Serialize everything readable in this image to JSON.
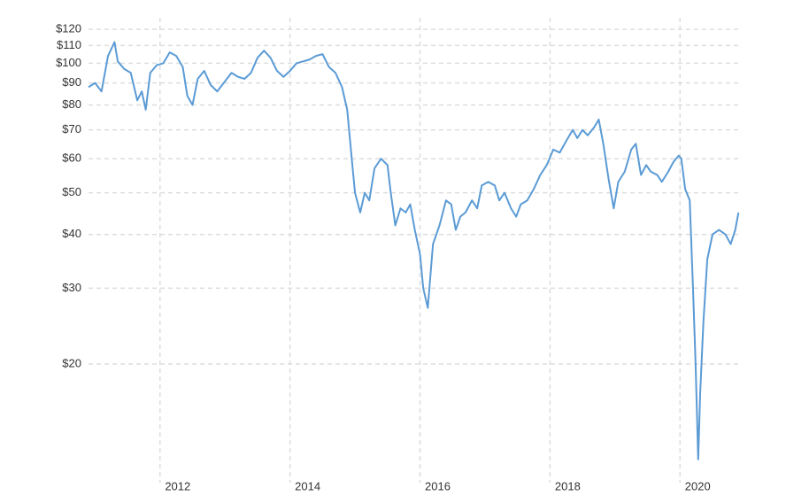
{
  "chart_data": {
    "type": "line",
    "x": [
      2010.9,
      2011.0,
      2011.1,
      2011.2,
      2011.3,
      2011.35,
      2011.45,
      2011.55,
      2011.65,
      2011.72,
      2011.78,
      2011.85,
      2011.95,
      2012.05,
      2012.15,
      2012.25,
      2012.35,
      2012.42,
      2012.5,
      2012.58,
      2012.68,
      2012.78,
      2012.88,
      2012.98,
      2013.1,
      2013.2,
      2013.3,
      2013.4,
      2013.5,
      2013.6,
      2013.7,
      2013.8,
      2013.9,
      2014.0,
      2014.1,
      2014.2,
      2014.3,
      2014.4,
      2014.5,
      2014.6,
      2014.7,
      2014.8,
      2014.88,
      2014.95,
      2015.0,
      2015.08,
      2015.15,
      2015.22,
      2015.3,
      2015.4,
      2015.5,
      2015.55,
      2015.62,
      2015.7,
      2015.78,
      2015.85,
      2015.92,
      2016.0,
      2016.05,
      2016.12,
      2016.2,
      2016.3,
      2016.4,
      2016.48,
      2016.55,
      2016.62,
      2016.7,
      2016.8,
      2016.88,
      2016.95,
      2017.05,
      2017.15,
      2017.22,
      2017.3,
      2017.4,
      2017.48,
      2017.55,
      2017.65,
      2017.75,
      2017.85,
      2017.95,
      2018.05,
      2018.15,
      2018.25,
      2018.35,
      2018.42,
      2018.5,
      2018.58,
      2018.68,
      2018.75,
      2018.82,
      2018.9,
      2018.98,
      2019.05,
      2019.15,
      2019.25,
      2019.32,
      2019.4,
      2019.48,
      2019.55,
      2019.65,
      2019.72,
      2019.82,
      2019.9,
      2019.98,
      2020.02,
      2020.08,
      2020.15,
      2020.2,
      2020.24,
      2020.28,
      2020.31,
      2020.36,
      2020.42,
      2020.5,
      2020.6,
      2020.7,
      2020.78,
      2020.85,
      2020.9
    ],
    "series": [
      {
        "color": "#5b9bd5",
        "values": [
          88,
          90,
          86,
          104,
          112,
          101,
          97,
          95,
          82,
          86,
          78,
          95,
          99,
          100,
          106,
          104,
          98,
          84,
          80,
          92,
          96,
          89,
          86,
          90,
          95,
          93,
          92,
          95,
          103,
          107,
          103,
          96,
          93,
          96,
          100,
          101,
          102,
          104,
          105,
          98,
          95,
          88,
          78,
          60,
          50,
          45,
          50,
          48,
          57,
          60,
          58,
          50,
          42,
          46,
          45,
          47,
          41,
          36,
          30,
          27,
          38,
          42,
          48,
          47,
          41,
          44,
          45,
          48,
          46,
          52,
          53,
          52,
          48,
          50,
          46,
          44,
          47,
          48,
          51,
          55,
          58,
          63,
          62,
          66,
          70,
          67,
          70,
          68,
          71,
          74,
          65,
          54,
          46,
          53,
          56,
          63,
          65,
          55,
          58,
          56,
          55,
          53,
          56,
          59,
          61,
          60,
          51,
          48,
          30,
          20,
          12,
          17,
          25,
          35,
          40,
          41,
          40,
          38,
          41,
          45
        ]
      }
    ],
    "xlim": [
      2010.9,
      2020.95
    ],
    "xticks": [
      2012,
      2014,
      2016,
      2018,
      2020
    ],
    "ylim": [
      10.85,
      127.6
    ],
    "y_scale": "log",
    "yticks": [
      {
        "value": 20,
        "label": "$20"
      },
      {
        "value": 30,
        "label": "$30"
      },
      {
        "value": 40,
        "label": "$40"
      },
      {
        "value": 50,
        "label": "$50"
      },
      {
        "value": 60,
        "label": "$60"
      },
      {
        "value": 70,
        "label": "$70"
      },
      {
        "value": 80,
        "label": "$80"
      },
      {
        "value": 90,
        "label": "$90"
      },
      {
        "value": 100,
        "label": "$100"
      },
      {
        "value": 110,
        "label": "$110"
      },
      {
        "value": 120,
        "label": "$120"
      }
    ],
    "grid": true
  }
}
